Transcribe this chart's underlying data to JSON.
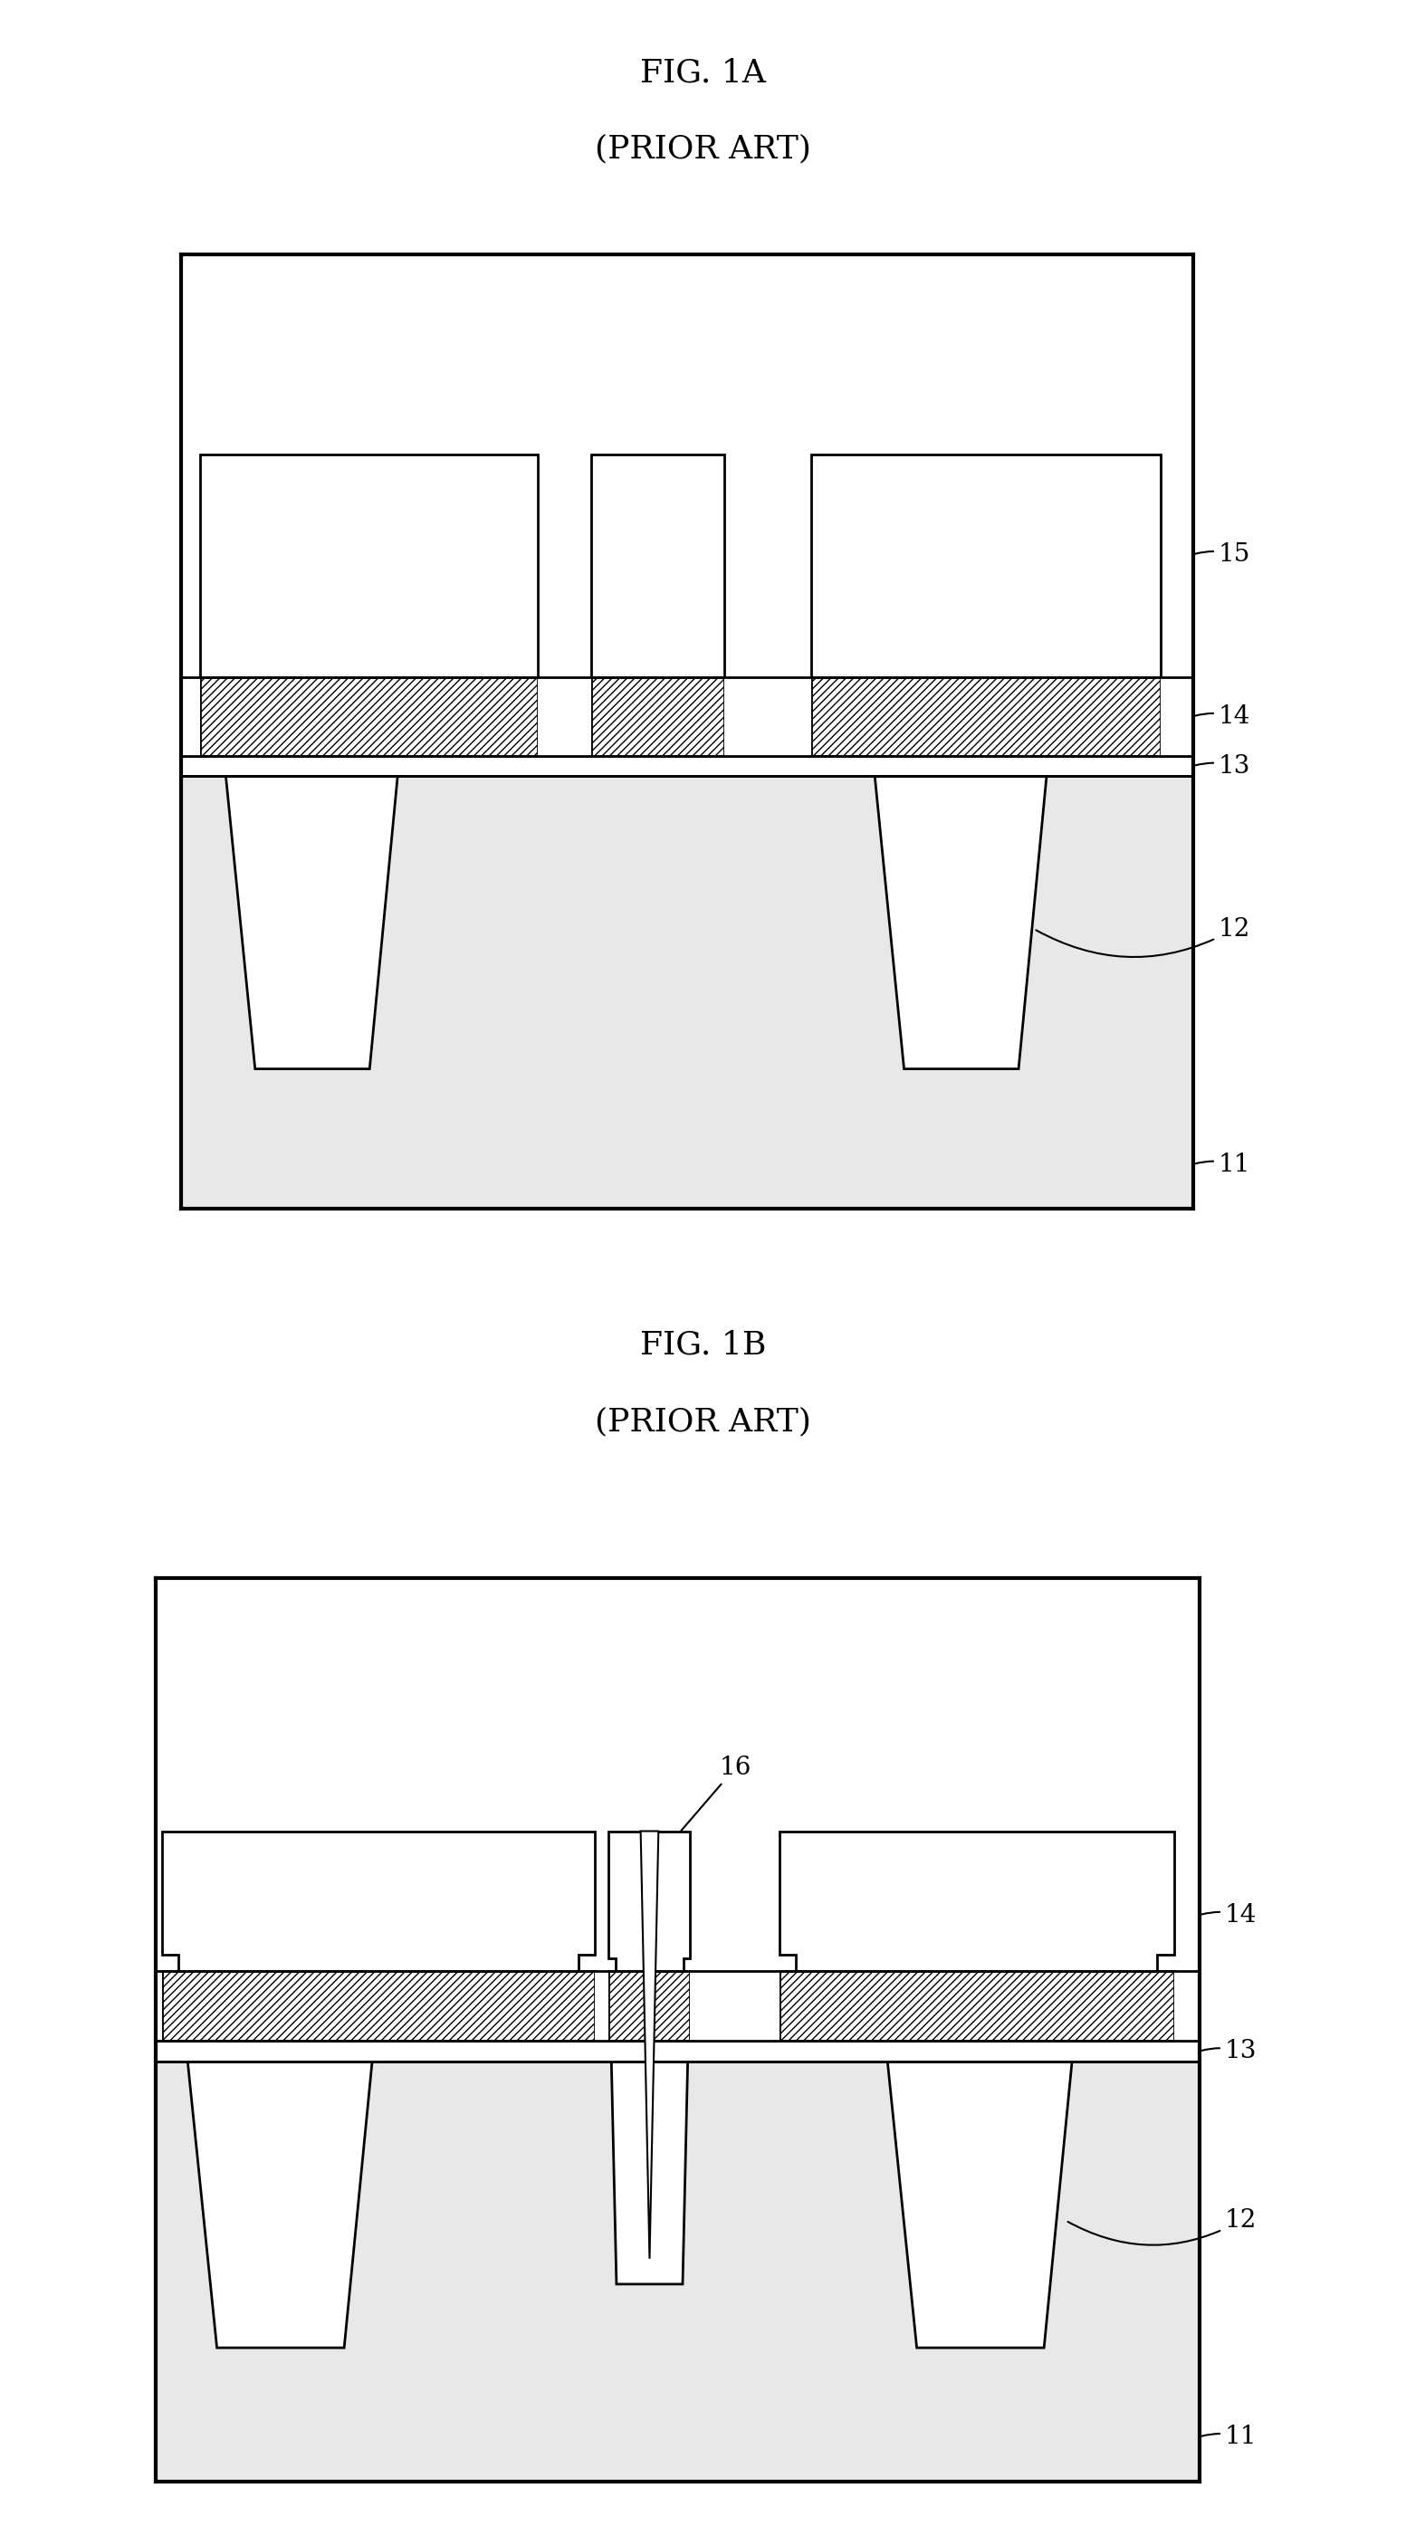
{
  "fig_title_1": "FIG. 1A",
  "fig_subtitle_1": "(PRIOR ART)",
  "fig_title_2": "FIG. 1B",
  "fig_subtitle_2": "(PRIOR ART)",
  "bg_color": "#ffffff",
  "line_color": "#000000",
  "fill_color": "#ffffff",
  "lw": 2.0,
  "label_fontsize": 20,
  "title_fontsize": 26
}
